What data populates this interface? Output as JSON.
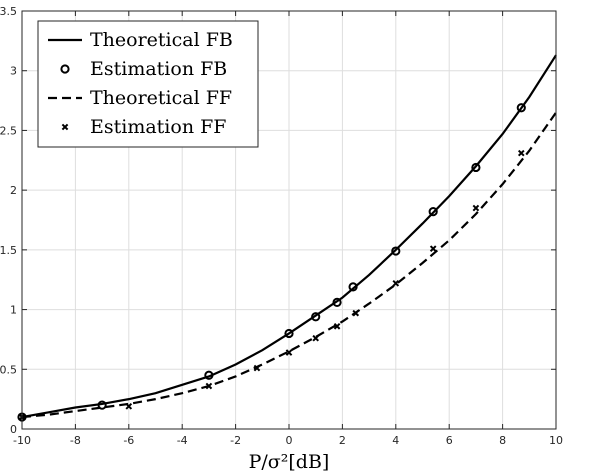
{
  "chart_data": {
    "type": "line",
    "xlabel": "P/σ²[dB]",
    "xlim": [
      -10,
      10
    ],
    "ylim": [
      0,
      3.5
    ],
    "xticks": [
      -10,
      -8,
      -6,
      -4,
      -2,
      0,
      2,
      4,
      6,
      8,
      10
    ],
    "yticks": [
      0,
      0.5,
      1,
      1.5,
      2,
      2.5,
      3,
      3.5
    ],
    "grid": true,
    "legend": "top-left",
    "series": [
      {
        "name": "Theoretical FB",
        "kind": "line",
        "style": "solid",
        "x": [
          -10,
          -9,
          -8,
          -7,
          -6,
          -5,
          -4,
          -3,
          -2,
          -1,
          0,
          1,
          2,
          3,
          4,
          5,
          6,
          7,
          8,
          9,
          10
        ],
        "y": [
          0.1,
          0.14,
          0.18,
          0.21,
          0.25,
          0.3,
          0.37,
          0.44,
          0.54,
          0.66,
          0.8,
          0.95,
          1.1,
          1.29,
          1.5,
          1.72,
          1.95,
          2.2,
          2.47,
          2.78,
          3.13
        ]
      },
      {
        "name": "Estimation FB",
        "kind": "scatter",
        "marker": "circle",
        "x": [
          -10,
          -7,
          -3,
          0,
          1,
          1.8,
          2.4,
          4,
          5.4,
          7,
          8.7
        ],
        "y": [
          0.1,
          0.2,
          0.45,
          0.8,
          0.94,
          1.06,
          1.19,
          1.49,
          1.82,
          2.19,
          2.69
        ]
      },
      {
        "name": "Theoretical FF",
        "kind": "line",
        "style": "dashed",
        "x": [
          -10,
          -9,
          -8,
          -7,
          -6,
          -5,
          -4,
          -3,
          -2,
          -1,
          0,
          1,
          2,
          3,
          4,
          5,
          6,
          7,
          8,
          9,
          10
        ],
        "y": [
          0.1,
          0.12,
          0.15,
          0.18,
          0.21,
          0.25,
          0.3,
          0.36,
          0.44,
          0.54,
          0.65,
          0.77,
          0.9,
          1.05,
          1.21,
          1.39,
          1.58,
          1.8,
          2.05,
          2.33,
          2.65
        ]
      },
      {
        "name": "Estimation FF",
        "kind": "scatter",
        "marker": "x",
        "x": [
          -10,
          -6,
          -3,
          -1.2,
          0,
          1,
          1.8,
          2.5,
          4,
          5.4,
          7,
          8.7
        ],
        "y": [
          0.1,
          0.19,
          0.36,
          0.51,
          0.64,
          0.76,
          0.86,
          0.97,
          1.22,
          1.51,
          1.85,
          2.31
        ]
      }
    ]
  }
}
